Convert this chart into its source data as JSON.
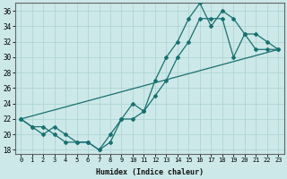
{
  "xlabel": "Humidex (Indice chaleur)",
  "xlim": [
    -0.5,
    23.5
  ],
  "ylim": [
    17.5,
    37
  ],
  "xticks": [
    0,
    1,
    2,
    3,
    4,
    5,
    6,
    7,
    8,
    9,
    10,
    11,
    12,
    13,
    14,
    15,
    16,
    17,
    18,
    19,
    20,
    21,
    22,
    23
  ],
  "yticks": [
    18,
    20,
    22,
    24,
    26,
    28,
    30,
    32,
    34,
    36
  ],
  "bg_color": "#cce8e8",
  "line_color": "#1a7070",
  "grid_color": "#b0d4d4",
  "line1_x": [
    0,
    1,
    2,
    3,
    4,
    5,
    6,
    7,
    8,
    9,
    10,
    11,
    12,
    13,
    14,
    15,
    16,
    17,
    18,
    19,
    20,
    21,
    22,
    23
  ],
  "line1_y": [
    22,
    21,
    21,
    20,
    19,
    19,
    19,
    18,
    19,
    22,
    24,
    23,
    27,
    30,
    32,
    35,
    37,
    34,
    36,
    35,
    33,
    33,
    32,
    31
  ],
  "line2_x": [
    0,
    1,
    2,
    3,
    4,
    5,
    6,
    7,
    8,
    9,
    10,
    11,
    12,
    13,
    14,
    15,
    16,
    17,
    18,
    19,
    20,
    21,
    22,
    23
  ],
  "line2_y": [
    22,
    21,
    20,
    21,
    20,
    19,
    19,
    18,
    20,
    22,
    22,
    23,
    25,
    27,
    30,
    32,
    35,
    35,
    35,
    30,
    33,
    31,
    31,
    31
  ],
  "line3_x": [
    0,
    23
  ],
  "line3_y": [
    22,
    31
  ]
}
